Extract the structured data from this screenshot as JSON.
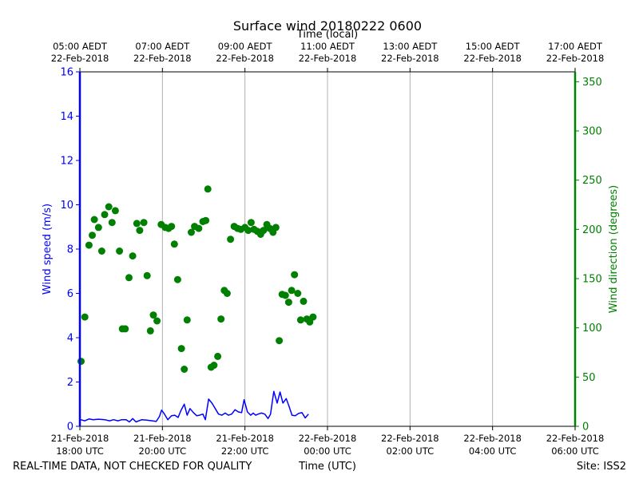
{
  "chart_data": {
    "type": "scatter",
    "title": "Surface wind 20180222 0600",
    "x_top_label": "Time (local)",
    "xlabel": "Time (UTC)",
    "ylabel_left": "Wind speed (m/s)",
    "ylabel_right": "Wind direction (degrees)",
    "footer_left": "REAL-TIME DATA, NOT CHECKED FOR QUALITY",
    "footer_right": "Site: ISS2",
    "x_range_hours": [
      0,
      12
    ],
    "ylim_left": [
      0,
      16
    ],
    "ylim_right": [
      0,
      360
    ],
    "left_ticks": [
      "0",
      "2",
      "4",
      "6",
      "8",
      "10",
      "12",
      "14",
      "16"
    ],
    "right_ticks": [
      "0",
      "50",
      "100",
      "150",
      "200",
      "250",
      "300",
      "350"
    ],
    "bottom_ticks": [
      {
        "h": 0,
        "line1": "21-Feb-2018",
        "line2": "18:00 UTC"
      },
      {
        "h": 2,
        "line1": "21-Feb-2018",
        "line2": "20:00 UTC"
      },
      {
        "h": 4,
        "line1": "21-Feb-2018",
        "line2": "22:00 UTC"
      },
      {
        "h": 6,
        "line1": "22-Feb-2018",
        "line2": "00:00 UTC"
      },
      {
        "h": 8,
        "line1": "22-Feb-2018",
        "line2": "02:00 UTC"
      },
      {
        "h": 10,
        "line1": "22-Feb-2018",
        "line2": "04:00 UTC"
      },
      {
        "h": 12,
        "line1": "22-Feb-2018",
        "line2": "06:00 UTC"
      }
    ],
    "top_ticks": [
      {
        "h": 0,
        "line1": "05:00 AEDT",
        "line2": "22-Feb-2018"
      },
      {
        "h": 2,
        "line1": "07:00 AEDT",
        "line2": "22-Feb-2018"
      },
      {
        "h": 4,
        "line1": "09:00 AEDT",
        "line2": "22-Feb-2018"
      },
      {
        "h": 6,
        "line1": "11:00 AEDT",
        "line2": "22-Feb-2018"
      },
      {
        "h": 8,
        "line1": "13:00 AEDT",
        "line2": "22-Feb-2018"
      },
      {
        "h": 10,
        "line1": "15:00 AEDT",
        "line2": "22-Feb-2018"
      },
      {
        "h": 12,
        "line1": "17:00 AEDT",
        "line2": "22-Feb-2018"
      }
    ],
    "series": [
      {
        "name": "Wind speed",
        "type": "line",
        "axis": "left",
        "color": "#0000ff",
        "points": [
          [
            0.02,
            0.3
          ],
          [
            0.12,
            0.25
          ],
          [
            0.22,
            0.33
          ],
          [
            0.32,
            0.3
          ],
          [
            0.45,
            0.32
          ],
          [
            0.6,
            0.3
          ],
          [
            0.72,
            0.25
          ],
          [
            0.82,
            0.3
          ],
          [
            0.92,
            0.25
          ],
          [
            1.02,
            0.3
          ],
          [
            1.12,
            0.3
          ],
          [
            1.2,
            0.2
          ],
          [
            1.28,
            0.35
          ],
          [
            1.36,
            0.2
          ],
          [
            1.5,
            0.3
          ],
          [
            1.62,
            0.28
          ],
          [
            1.75,
            0.25
          ],
          [
            1.85,
            0.22
          ],
          [
            1.93,
            0.45
          ],
          [
            1.98,
            0.73
          ],
          [
            2.05,
            0.55
          ],
          [
            2.13,
            0.3
          ],
          [
            2.22,
            0.48
          ],
          [
            2.3,
            0.5
          ],
          [
            2.38,
            0.4
          ],
          [
            2.45,
            0.72
          ],
          [
            2.53,
            1.0
          ],
          [
            2.6,
            0.5
          ],
          [
            2.67,
            0.8
          ],
          [
            2.75,
            0.62
          ],
          [
            2.83,
            0.48
          ],
          [
            2.9,
            0.5
          ],
          [
            2.98,
            0.55
          ],
          [
            3.04,
            0.3
          ],
          [
            3.12,
            1.23
          ],
          [
            3.2,
            1.05
          ],
          [
            3.28,
            0.8
          ],
          [
            3.36,
            0.55
          ],
          [
            3.44,
            0.5
          ],
          [
            3.52,
            0.6
          ],
          [
            3.6,
            0.5
          ],
          [
            3.68,
            0.55
          ],
          [
            3.76,
            0.75
          ],
          [
            3.84,
            0.65
          ],
          [
            3.92,
            0.62
          ],
          [
            3.98,
            1.2
          ],
          [
            4.06,
            0.65
          ],
          [
            4.14,
            0.5
          ],
          [
            4.2,
            0.6
          ],
          [
            4.26,
            0.5
          ],
          [
            4.32,
            0.55
          ],
          [
            4.4,
            0.6
          ],
          [
            4.48,
            0.55
          ],
          [
            4.56,
            0.35
          ],
          [
            4.62,
            0.55
          ],
          [
            4.7,
            1.58
          ],
          [
            4.78,
            1.05
          ],
          [
            4.85,
            1.55
          ],
          [
            4.92,
            1.05
          ],
          [
            5.0,
            1.25
          ],
          [
            5.06,
            0.95
          ],
          [
            5.14,
            0.5
          ],
          [
            5.22,
            0.48
          ],
          [
            5.3,
            0.58
          ],
          [
            5.38,
            0.62
          ],
          [
            5.46,
            0.38
          ],
          [
            5.54,
            0.55
          ]
        ]
      },
      {
        "name": "Wind direction",
        "type": "scatter",
        "axis": "right",
        "color": "#008000",
        "points": [
          [
            0.03,
            66
          ],
          [
            0.12,
            111
          ],
          [
            0.22,
            184
          ],
          [
            0.3,
            194
          ],
          [
            0.35,
            210
          ],
          [
            0.45,
            202
          ],
          [
            0.53,
            178
          ],
          [
            0.6,
            215
          ],
          [
            0.7,
            223
          ],
          [
            0.78,
            207
          ],
          [
            0.86,
            219
          ],
          [
            0.96,
            178
          ],
          [
            1.03,
            99
          ],
          [
            1.1,
            99
          ],
          [
            1.19,
            151
          ],
          [
            1.28,
            173
          ],
          [
            1.38,
            206
          ],
          [
            1.45,
            199
          ],
          [
            1.55,
            207
          ],
          [
            1.63,
            153
          ],
          [
            1.71,
            97
          ],
          [
            1.78,
            113
          ],
          [
            1.87,
            107
          ],
          [
            1.97,
            205
          ],
          [
            2.07,
            202
          ],
          [
            2.15,
            201
          ],
          [
            2.22,
            203
          ],
          [
            2.29,
            185
          ],
          [
            2.37,
            149
          ],
          [
            2.46,
            79
          ],
          [
            2.53,
            58
          ],
          [
            2.6,
            108
          ],
          [
            2.7,
            197
          ],
          [
            2.78,
            203
          ],
          [
            2.88,
            201
          ],
          [
            2.98,
            208
          ],
          [
            3.05,
            209
          ],
          [
            3.1,
            241
          ],
          [
            3.18,
            60
          ],
          [
            3.25,
            62
          ],
          [
            3.34,
            71
          ],
          [
            3.42,
            109
          ],
          [
            3.5,
            138
          ],
          [
            3.57,
            135
          ],
          [
            3.65,
            190
          ],
          [
            3.74,
            203
          ],
          [
            3.82,
            201
          ],
          [
            3.9,
            200
          ],
          [
            4.0,
            202
          ],
          [
            4.08,
            199
          ],
          [
            4.15,
            207
          ],
          [
            4.22,
            200
          ],
          [
            4.3,
            198
          ],
          [
            4.38,
            195
          ],
          [
            4.45,
            199
          ],
          [
            4.53,
            205
          ],
          [
            4.6,
            201
          ],
          [
            4.68,
            197
          ],
          [
            4.75,
            202
          ],
          [
            4.83,
            87
          ],
          [
            4.9,
            134
          ],
          [
            4.98,
            133
          ],
          [
            5.06,
            126
          ],
          [
            5.13,
            138
          ],
          [
            5.2,
            154
          ],
          [
            5.28,
            135
          ],
          [
            5.35,
            108
          ],
          [
            5.42,
            127
          ],
          [
            5.5,
            109
          ],
          [
            5.57,
            106
          ],
          [
            5.65,
            111
          ]
        ]
      }
    ]
  }
}
